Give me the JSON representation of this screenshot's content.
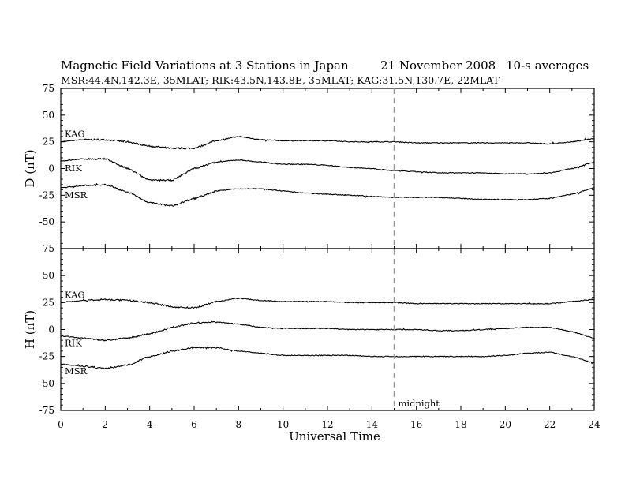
{
  "figure": {
    "title": "Magnetic Field Variations at 3 Stations in Japan",
    "date": "21 November 2008",
    "averaging": "10-s averages",
    "subtitle": "MSR:44.4N,142.3E, 35MLAT;  RIK:43.5N,143.8E, 35MLAT;  KAG:31.5N,130.7E, 22MLAT",
    "midnight_label": "midnight",
    "midnight_ut": 15
  },
  "colors": {
    "trace": "#000000",
    "midnight_line": "#999999",
    "frame": "#000000"
  },
  "chart_data": [
    {
      "type": "line",
      "panel": "D",
      "ylabel": "D (nT)",
      "xlabel": "",
      "xlim": [
        0,
        24
      ],
      "ylim": [
        -75,
        75
      ],
      "yticks": [
        75,
        50,
        25,
        0,
        -25,
        -50,
        -75
      ],
      "ytick_labels": [
        "75",
        "50",
        "25",
        "0",
        "-25",
        "-50",
        "-75"
      ],
      "grid": false,
      "x": [
        0,
        1,
        2,
        3,
        4,
        5,
        6,
        7,
        8,
        9,
        10,
        11,
        12,
        13,
        14,
        15,
        16,
        17,
        18,
        19,
        20,
        21,
        22,
        23,
        24
      ],
      "series": [
        {
          "name": "KAG",
          "values": [
            25,
            27,
            27,
            25,
            21,
            19,
            19,
            26,
            30,
            27,
            26,
            26,
            26,
            25,
            25,
            25,
            24,
            24,
            24,
            24,
            24,
            24,
            23,
            25,
            28
          ]
        },
        {
          "name": "RIK",
          "values": [
            7,
            9,
            9,
            0,
            -11,
            -11,
            0,
            6,
            8,
            6,
            4,
            4,
            3,
            1,
            0,
            -2,
            -3,
            -4,
            -4,
            -4,
            -5,
            -5,
            -4,
            0,
            6
          ]
        },
        {
          "name": "MSR",
          "values": [
            -18,
            -16,
            -15,
            -22,
            -32,
            -35,
            -28,
            -21,
            -19,
            -19,
            -21,
            -23,
            -24,
            -25,
            -26,
            -27,
            -27,
            -27,
            -28,
            -29,
            -29,
            -29,
            -28,
            -24,
            -18
          ]
        }
      ]
    },
    {
      "type": "line",
      "panel": "H",
      "ylabel": "H (nT)",
      "xlabel": "Universal Time",
      "xlim": [
        0,
        24
      ],
      "ylim": [
        -75,
        75
      ],
      "xticks": [
        0,
        2,
        4,
        6,
        8,
        10,
        12,
        14,
        16,
        18,
        20,
        22,
        24
      ],
      "xtick_labels": [
        "0",
        "2",
        "4",
        "6",
        "8",
        "10",
        "12",
        "14",
        "16",
        "18",
        "20",
        "22",
        "24"
      ],
      "yticks": [
        50,
        25,
        0,
        -25,
        -50,
        -75
      ],
      "ytick_labels": [
        "50",
        "25",
        "0",
        "-25",
        "-50",
        "-75"
      ],
      "grid": false,
      "x": [
        0,
        1,
        2,
        3,
        4,
        5,
        6,
        7,
        8,
        9,
        10,
        11,
        12,
        13,
        14,
        15,
        16,
        17,
        18,
        19,
        20,
        21,
        22,
        23,
        24
      ],
      "series": [
        {
          "name": "KAG",
          "values": [
            25,
            27,
            28,
            27,
            25,
            21,
            20,
            26,
            29,
            27,
            26,
            26,
            26,
            25,
            25,
            25,
            24,
            24,
            24,
            24,
            24,
            24,
            24,
            26,
            28
          ]
        },
        {
          "name": "RIK",
          "values": [
            -6,
            -8,
            -10,
            -8,
            -4,
            2,
            6,
            7,
            5,
            2,
            1,
            1,
            1,
            0,
            0,
            0,
            0,
            -1,
            -1,
            0,
            1,
            2,
            2,
            -2,
            -8
          ]
        },
        {
          "name": "MSR",
          "values": [
            -32,
            -34,
            -36,
            -33,
            -25,
            -20,
            -17,
            -17,
            -20,
            -22,
            -24,
            -24,
            -24,
            -24,
            -25,
            -25,
            -25,
            -25,
            -25,
            -25,
            -24,
            -22,
            -21,
            -25,
            -31
          ]
        }
      ]
    }
  ]
}
